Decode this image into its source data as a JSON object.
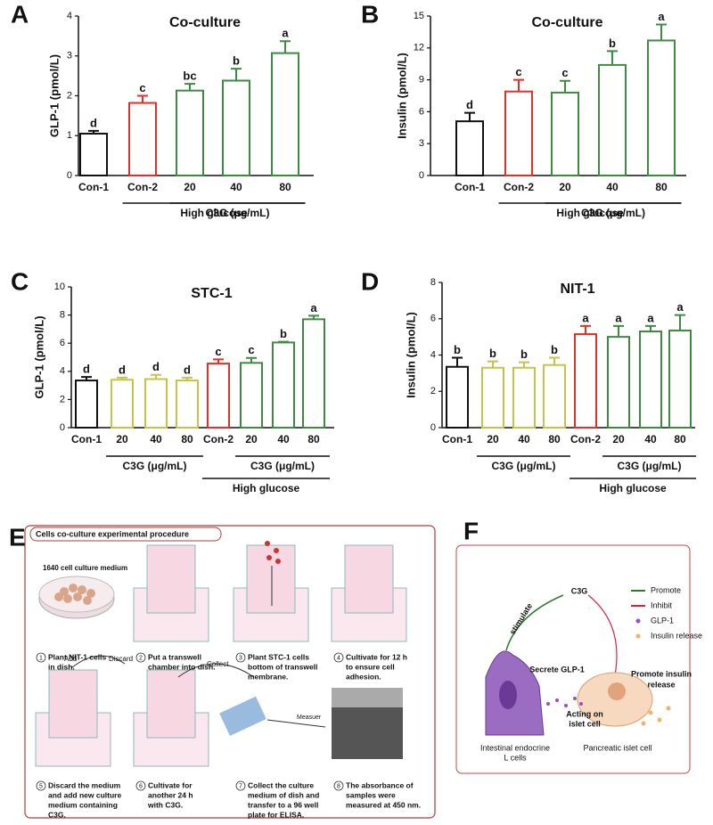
{
  "chart_data": [
    {
      "panel": "A",
      "type": "bar",
      "title": "Co-culture",
      "ylabel": "GLP-1 (pmol/L)",
      "categories": [
        "Con-1",
        "Con-2",
        "20",
        "40",
        "80"
      ],
      "values": [
        1.05,
        1.82,
        2.13,
        2.38,
        3.07
      ],
      "errors": [
        0.07,
        0.18,
        0.17,
        0.3,
        0.3
      ],
      "colors": [
        "#111111",
        "#e0302a",
        "#3d8b40",
        "#3d8b40",
        "#3d8b40"
      ],
      "annotations": [
        "d",
        "c",
        "bc",
        "b",
        "a"
      ],
      "ylim": [
        0,
        4
      ],
      "yticks": [
        0,
        1,
        2,
        3,
        4
      ],
      "groups": [
        {
          "label": "C3G (μg/mL)",
          "span": [
            2,
            4
          ]
        },
        {
          "label": "High glucose",
          "span": [
            1,
            4
          ]
        }
      ]
    },
    {
      "panel": "B",
      "type": "bar",
      "title": "Co-culture",
      "ylabel": "Insulin (pmol/L)",
      "categories": [
        "Con-1",
        "Con-2",
        "20",
        "40",
        "80"
      ],
      "values": [
        5.1,
        7.9,
        7.8,
        10.4,
        12.7
      ],
      "errors": [
        0.8,
        1.1,
        1.1,
        1.3,
        1.5
      ],
      "colors": [
        "#111111",
        "#e0302a",
        "#3d8b40",
        "#3d8b40",
        "#3d8b40"
      ],
      "annotations": [
        "d",
        "c",
        "c",
        "b",
        "a"
      ],
      "ylim": [
        0,
        15
      ],
      "yticks": [
        0,
        3,
        6,
        9,
        12,
        15
      ],
      "groups": [
        {
          "label": "C3G (μg/mL)",
          "span": [
            2,
            4
          ]
        },
        {
          "label": "High glucose",
          "span": [
            1,
            4
          ]
        }
      ]
    },
    {
      "panel": "C",
      "type": "bar",
      "title": "STC-1",
      "ylabel": "GLP-1 (pmol/L)",
      "categories": [
        "Con-1",
        "20",
        "40",
        "80",
        "Con-2",
        "20",
        "40",
        "80"
      ],
      "values": [
        3.35,
        3.4,
        3.45,
        3.35,
        4.55,
        4.6,
        6.05,
        7.7
      ],
      "errors": [
        0.25,
        0.15,
        0.3,
        0.2,
        0.3,
        0.35,
        0.05,
        0.25
      ],
      "colors": [
        "#111111",
        "#c4c44a",
        "#c4c44a",
        "#c4c44a",
        "#e0302a",
        "#3d8b40",
        "#3d8b40",
        "#3d8b40"
      ],
      "annotations": [
        "d",
        "d",
        "d",
        "d",
        "c",
        "c",
        "b",
        "a"
      ],
      "ylim": [
        0,
        10
      ],
      "yticks": [
        0,
        2,
        4,
        6,
        8,
        10
      ],
      "groups": [
        {
          "label": "C3G (μg/mL)",
          "span": [
            1,
            3
          ]
        },
        {
          "label": "C3G (μg/mL)",
          "span": [
            5,
            7
          ]
        },
        {
          "label": "High glucose",
          "span": [
            4,
            7
          ]
        }
      ]
    },
    {
      "panel": "D",
      "type": "bar",
      "title": "NIT-1",
      "ylabel": "Insulin (pmol/L)",
      "categories": [
        "Con-1",
        "20",
        "40",
        "80",
        "Con-2",
        "20",
        "40",
        "80"
      ],
      "values": [
        3.35,
        3.3,
        3.3,
        3.45,
        5.15,
        5.0,
        5.3,
        5.35
      ],
      "errors": [
        0.5,
        0.35,
        0.3,
        0.4,
        0.45,
        0.6,
        0.3,
        0.85
      ],
      "colors": [
        "#111111",
        "#c4c44a",
        "#c4c44a",
        "#c4c44a",
        "#e0302a",
        "#3d8b40",
        "#3d8b40",
        "#3d8b40"
      ],
      "annotations": [
        "b",
        "b",
        "b",
        "b",
        "a",
        "a",
        "a",
        "a"
      ],
      "ylim": [
        0,
        8
      ],
      "yticks": [
        0,
        2,
        4,
        6,
        8
      ],
      "groups": [
        {
          "label": "C3G (μg/mL)",
          "span": [
            1,
            3
          ]
        },
        {
          "label": "C3G (μg/mL)",
          "span": [
            5,
            7
          ]
        },
        {
          "label": "High glucose",
          "span": [
            4,
            7
          ]
        }
      ]
    }
  ],
  "panel_e": {
    "letter": "E",
    "title": "Cells co-culture experimental procedure",
    "medium": "1640 cell culture medium",
    "add": "Add",
    "discard": "Discard",
    "collect": "Collect",
    "measurer": "Measuer",
    "steps": [
      {
        "number": 1,
        "lines": [
          "Plant NIT-1 cells",
          "in dish."
        ]
      },
      {
        "number": 2,
        "lines": [
          "Put a transwell",
          "chamber into dish."
        ]
      },
      {
        "number": 3,
        "lines": [
          "Plant STC-1 cells",
          "bottom of transwell",
          "membrane."
        ]
      },
      {
        "number": 4,
        "lines": [
          "Cultivate for 12 h",
          "to ensure cell",
          "adhesion."
        ]
      },
      {
        "number": 5,
        "lines": [
          "Discard the medium",
          "and add new culture",
          "medium containing",
          "C3G."
        ]
      },
      {
        "number": 6,
        "lines": [
          "Cultivate for",
          "another 24 h",
          "with C3G."
        ]
      },
      {
        "number": 7,
        "lines": [
          "Collect the culture",
          "medium of dish and",
          "transfer to a 96 well",
          "plate for ELISA."
        ]
      },
      {
        "number": 8,
        "lines": [
          "The absorbance of",
          "samples were",
          "measured at 450 nm."
        ]
      }
    ]
  },
  "panel_f": {
    "letter": "F",
    "compound": "C3G",
    "stimulate": "stimulate",
    "legend": [
      "Promote",
      "Inhibit",
      "GLP-1",
      "Insulin release"
    ],
    "secrete": "Secrete GLP-1",
    "acting": [
      "Acting on",
      "islet cell"
    ],
    "promote": [
      "Promote insulin",
      "release"
    ],
    "l_cell": [
      "Intestinal endocrine",
      "L cells"
    ],
    "islet": "Pancreatic islet cell"
  }
}
